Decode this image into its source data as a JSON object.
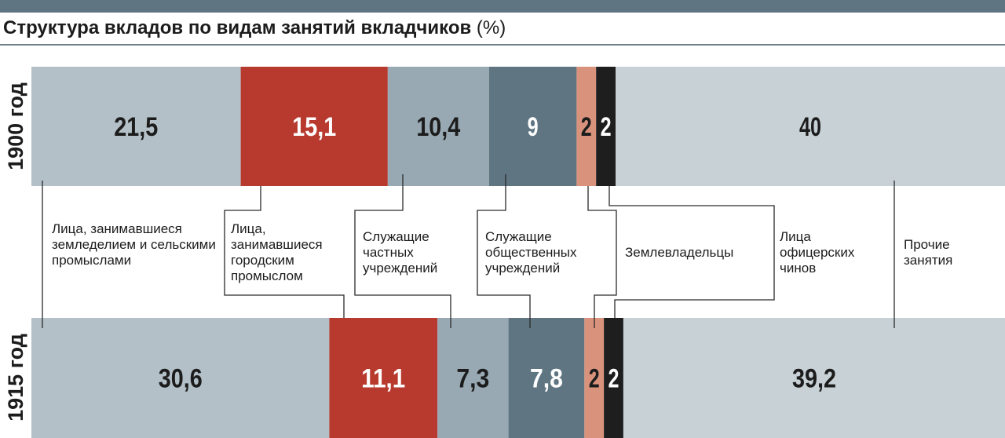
{
  "title": {
    "main": "Структура вкладов по видам занятий вкладчиков",
    "unit": "(%)"
  },
  "chart_data": {
    "type": "bar",
    "orientation": "horizontal-stacked",
    "categories": [
      "Лица, занимавшиеся земледелием и сельскими промыслами",
      "Лица, занимавшиеся городским промыслом",
      "Служащие частных учреждений",
      "Служащие общественных учреждений",
      "Землевладельцы",
      "Лица офицерских чинов",
      "Прочие занятия"
    ],
    "series": [
      {
        "name": "1900 год",
        "values": [
          21.5,
          15.1,
          10.4,
          9,
          2,
          2,
          40
        ],
        "labels": [
          "21,5",
          "15,1",
          "10,4",
          "9",
          "2",
          "2",
          "40"
        ]
      },
      {
        "name": "1915 год",
        "values": [
          30.6,
          11.1,
          7.3,
          7.8,
          2,
          2,
          39.2
        ],
        "labels": [
          "30,6",
          "11,1",
          "7,3",
          "7,8",
          "2",
          "2",
          "39,2"
        ]
      }
    ],
    "colors": [
      "#b3c0c7",
      "#b83a2f",
      "#98a9b3",
      "#5f7582",
      "#d9937d",
      "#1e1e1e",
      "#c7d1d6"
    ],
    "value_label_colors": [
      "#1c1c1c",
      "#ffffff",
      "#1c1c1c",
      "#ffffff",
      "#1c1c1c",
      "#ffffff",
      "#1c1c1c"
    ],
    "xlim": [
      0,
      100
    ],
    "legend": "between-bars"
  }
}
